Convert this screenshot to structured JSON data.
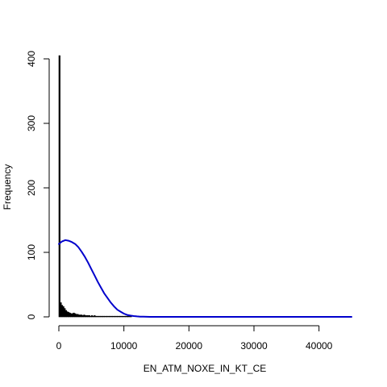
{
  "chart_data": {
    "type": "bar",
    "title": "",
    "xlabel": "EN_ATM_NOXE_IN_KT_CE",
    "ylabel": "Frequency",
    "xlim": [
      0,
      45000
    ],
    "ylim": [
      0,
      400
    ],
    "x_ticks": [
      0,
      10000,
      20000,
      30000,
      40000
    ],
    "y_ticks": [
      0,
      100,
      200,
      300,
      400
    ],
    "grid": false,
    "bin_width": 200,
    "histogram": {
      "bin_starts": [
        0,
        200,
        400,
        600,
        800,
        1000,
        1200,
        1400,
        1600,
        1800,
        2000,
        2200,
        2400,
        2600,
        2800,
        3000,
        3200,
        3400,
        3600,
        3800,
        4000,
        4200,
        4400,
        4600,
        4800,
        5000,
        5200,
        5400,
        5600,
        5800,
        6000,
        6200,
        6400,
        6600,
        6800,
        7000,
        7400,
        7800,
        8200,
        8600,
        9000,
        9400,
        9800,
        10200,
        10600,
        11000
      ],
      "counts": [
        405,
        22,
        18,
        16,
        13,
        10,
        8,
        7,
        6,
        5,
        5,
        6,
        5,
        4,
        4,
        3,
        3,
        3,
        2,
        3,
        2,
        2,
        2,
        2,
        1,
        2,
        1,
        2,
        1,
        1,
        1,
        1,
        1,
        1,
        1,
        1,
        1,
        1,
        1,
        1,
        1,
        1,
        1,
        1,
        1,
        1
      ]
    },
    "density_curve": {
      "color": "#0000cc",
      "x": [
        0,
        500,
        1000,
        1500,
        2000,
        2500,
        3000,
        3500,
        4000,
        4500,
        5000,
        5500,
        6000,
        6500,
        7000,
        7500,
        8000,
        8500,
        9000,
        9500,
        10000,
        10500,
        11000,
        11500,
        12000,
        12500,
        13000,
        14000,
        15000,
        20000,
        25000,
        30000,
        35000,
        40000,
        45000
      ],
      "y": [
        113,
        117,
        119,
        118,
        116,
        113,
        108,
        101,
        93,
        84,
        74,
        64,
        54,
        45,
        36,
        29,
        22,
        16,
        11,
        8,
        5,
        3,
        2,
        1.2,
        0.7,
        0.4,
        0.2,
        0.05,
        0,
        0,
        0,
        0,
        0,
        0,
        0
      ]
    }
  }
}
